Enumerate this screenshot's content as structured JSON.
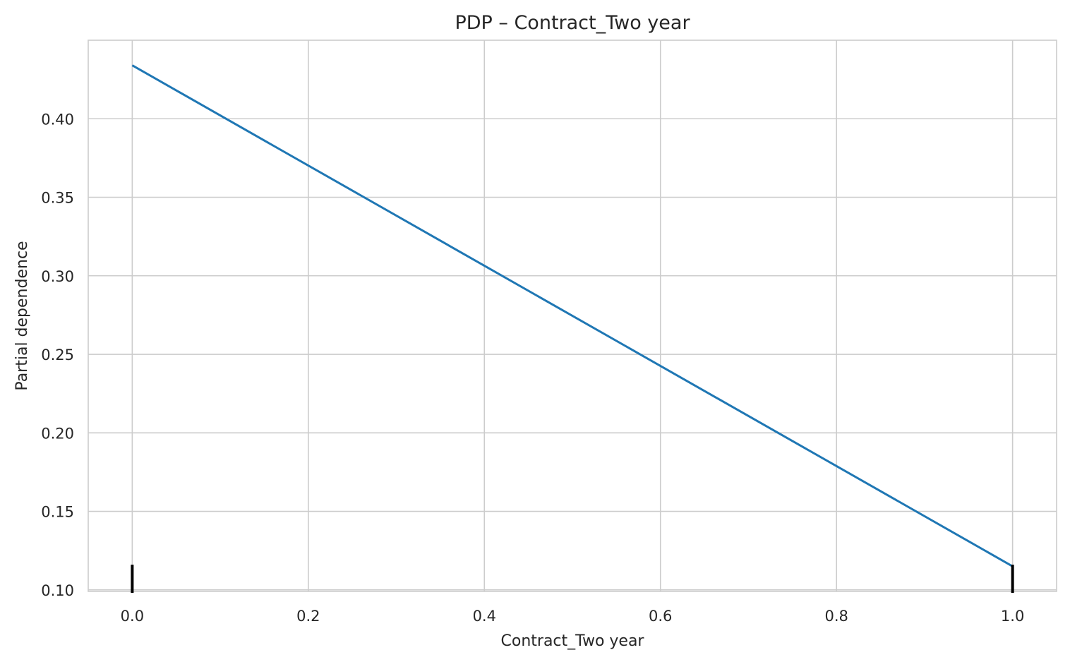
{
  "chart_data": {
    "type": "line",
    "title": "PDP – Contract_Two year",
    "xlabel": "Contract_Two year",
    "ylabel": "Partial dependence",
    "xlim": [
      -0.05,
      1.05
    ],
    "ylim": [
      0.099,
      0.45
    ],
    "x_ticks": [
      0.0,
      0.2,
      0.4,
      0.6,
      0.8,
      1.0
    ],
    "x_tick_labels": [
      "0.0",
      "0.2",
      "0.4",
      "0.6",
      "0.8",
      "1.0"
    ],
    "y_ticks": [
      0.1,
      0.15,
      0.2,
      0.25,
      0.3,
      0.35,
      0.4
    ],
    "y_tick_labels": [
      "0.10",
      "0.15",
      "0.20",
      "0.25",
      "0.30",
      "0.35",
      "0.40"
    ],
    "grid": true,
    "series": [
      {
        "x": [
          0.0,
          1.0
        ],
        "values": [
          0.434,
          0.115
        ]
      }
    ],
    "rug": {
      "x": [
        0.0,
        1.0
      ],
      "y_top": 0.116
    },
    "colors": {
      "line": "#1f77b4",
      "grid": "#cccccc",
      "spine": "#cccccc",
      "rug": "#000000",
      "text": "#262626"
    }
  }
}
